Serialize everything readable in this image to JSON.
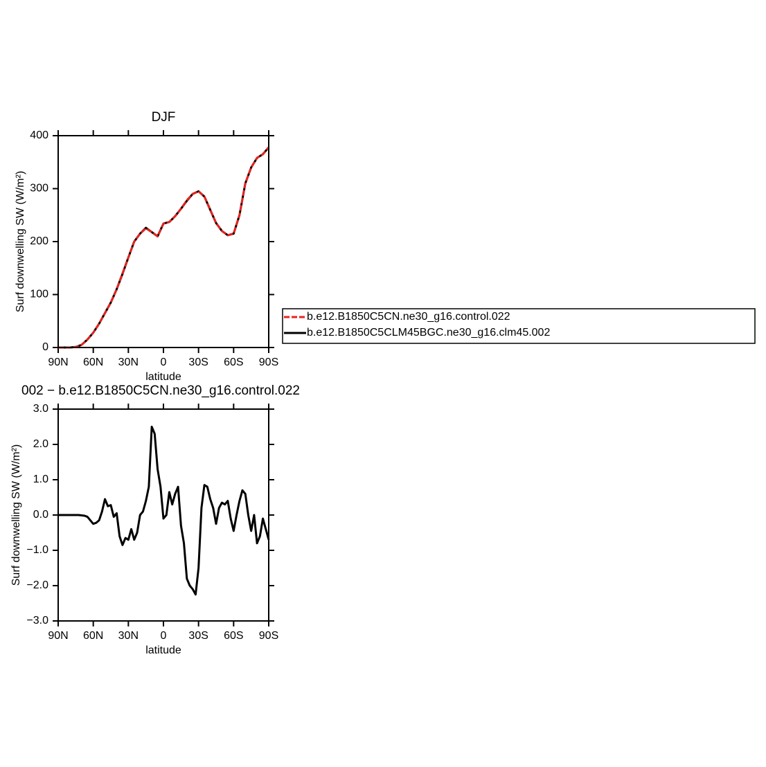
{
  "chart_data": [
    {
      "type": "line",
      "title": "DJF",
      "xlabel": "latitude",
      "ylabel": "Surf downwelling SW (W/m²)",
      "x": [
        90,
        85,
        80,
        75,
        70,
        65,
        60,
        55,
        50,
        45,
        40,
        35,
        30,
        25,
        20,
        15,
        10,
        5,
        0,
        -5,
        -10,
        -15,
        -20,
        -25,
        -30,
        -35,
        -40,
        -45,
        -50,
        -55,
        -60,
        -65,
        -70,
        -75,
        -80,
        -85,
        -90
      ],
      "series": [
        {
          "name": "b.e12.B1850C5CLM45BGC.ne30_g16.clm45.002",
          "color": "#000000",
          "dashed": false,
          "values": [
            0,
            0,
            0,
            1,
            5,
            15,
            28,
            45,
            65,
            85,
            110,
            139,
            170,
            200,
            215,
            226,
            218,
            210,
            234,
            237,
            248,
            262,
            277,
            290,
            295,
            285,
            260,
            235,
            220,
            212,
            215,
            250,
            310,
            340,
            358,
            365,
            378
          ]
        },
        {
          "name": "b.e12.B1850C5CN.ne30_g16.control.022",
          "color": "#e8231e",
          "dashed": true,
          "values": [
            0,
            0,
            0,
            1,
            5,
            15,
            28,
            45,
            65,
            85,
            110,
            140,
            170,
            200,
            215,
            225,
            218,
            210,
            234,
            237,
            248,
            262,
            278,
            290,
            295,
            285,
            260,
            235,
            220,
            212,
            215,
            250,
            310,
            340,
            358,
            365,
            378
          ]
        }
      ],
      "xlim": [
        90,
        -90
      ],
      "xticks": [
        {
          "value": 90,
          "label": "90N"
        },
        {
          "value": 60,
          "label": "60N"
        },
        {
          "value": 30,
          "label": "30N"
        },
        0,
        {
          "value": -30,
          "label": "30S"
        },
        {
          "value": -60,
          "label": "60S"
        },
        {
          "value": -90,
          "label": "90S"
        }
      ],
      "ylim": [
        0,
        400
      ],
      "yticks": [
        0,
        100,
        200,
        300,
        400
      ]
    },
    {
      "type": "line",
      "title": "002 − b.e12.B1850C5CN.ne30_g16.control.022",
      "xlabel": "latitude",
      "ylabel": "Surf downwelling SW (W/m²)",
      "x": [
        90,
        87.5,
        85,
        82.5,
        80,
        77.5,
        75,
        72.5,
        70,
        67.5,
        65,
        62.5,
        60,
        57.5,
        55,
        52.5,
        50,
        47.5,
        45,
        42.5,
        40,
        37.5,
        35,
        32.5,
        30,
        27.5,
        25,
        22.5,
        20,
        17.5,
        15,
        12.5,
        10,
        7.5,
        5,
        2.5,
        0,
        -2.5,
        -5,
        -7.5,
        -10,
        -12.5,
        -15,
        -17.5,
        -20,
        -22.5,
        -25,
        -27.5,
        -30,
        -32.5,
        -35,
        -37.5,
        -40,
        -42.5,
        -45,
        -47.5,
        -50,
        -52.5,
        -55,
        -57.5,
        -60,
        -62.5,
        -65,
        -67.5,
        -70,
        -72.5,
        -75,
        -77.5,
        -80,
        -82.5,
        -85,
        -87.5,
        -90
      ],
      "values": [
        0,
        0,
        0,
        0,
        0,
        0,
        0,
        0,
        -0.01,
        -0.02,
        -0.05,
        -0.15,
        -0.25,
        -0.22,
        -0.15,
        0.1,
        0.45,
        0.25,
        0.28,
        -0.05,
        0.05,
        -0.6,
        -0.85,
        -0.65,
        -0.7,
        -0.4,
        -0.7,
        -0.5,
        0.0,
        0.1,
        0.4,
        0.8,
        2.5,
        2.3,
        1.3,
        0.8,
        -0.1,
        0.0,
        0.65,
        0.3,
        0.6,
        0.8,
        -0.3,
        -0.8,
        -1.8,
        -2.0,
        -2.1,
        -2.25,
        -1.5,
        0.2,
        0.85,
        0.8,
        0.45,
        0.2,
        -0.25,
        0.2,
        0.35,
        0.3,
        0.4,
        -0.1,
        -0.45,
        0.0,
        0.4,
        0.7,
        0.6,
        0.0,
        -0.45,
        0.0,
        -0.8,
        -0.6,
        -0.1,
        -0.4,
        -0.7
      ],
      "color": "#000000",
      "xlim": [
        90,
        -90
      ],
      "xticks": [
        {
          "value": 90,
          "label": "90N"
        },
        {
          "value": 60,
          "label": "60N"
        },
        {
          "value": 30,
          "label": "30N"
        },
        0,
        {
          "value": -30,
          "label": "30S"
        },
        {
          "value": -60,
          "label": "60S"
        },
        {
          "value": -90,
          "label": "90S"
        }
      ],
      "ylim": [
        -3,
        3
      ],
      "yticks": [
        {
          "value": 3,
          "label": "3.0"
        },
        {
          "value": 2,
          "label": "2.0"
        },
        {
          "value": 1,
          "label": "1.0"
        },
        {
          "value": 0,
          "label": "0.0"
        },
        {
          "value": -1,
          "label": "−1.0"
        },
        {
          "value": -2,
          "label": "−2.0"
        },
        {
          "value": -3,
          "label": "−3.0"
        }
      ]
    }
  ]
}
